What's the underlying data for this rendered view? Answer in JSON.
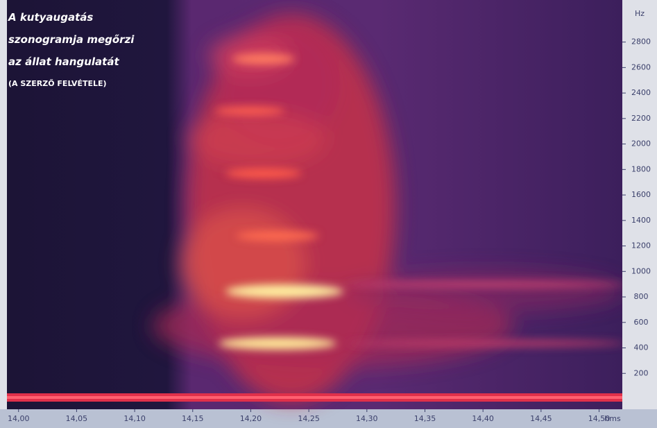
{
  "chart_data": {
    "type": "spectrogram",
    "title_lines": [
      "A kutyaugatás",
      "szonogramja megőrzi",
      "az állat hangulatát"
    ],
    "subtitle": "(A SZERZŐ FELVÉTELE)",
    "y_label": "Hz",
    "x_label": "hms",
    "xlim": [
      13.99,
      14.52
    ],
    "xticks": [
      {
        "value": 14.0,
        "label": "14,00"
      },
      {
        "value": 14.05,
        "label": "14,05"
      },
      {
        "value": 14.1,
        "label": "14,10"
      },
      {
        "value": 14.15,
        "label": "14,15"
      },
      {
        "value": 14.2,
        "label": "14,20"
      },
      {
        "value": 14.25,
        "label": "14,25"
      },
      {
        "value": 14.3,
        "label": "14,30"
      },
      {
        "value": 14.35,
        "label": "14,35"
      },
      {
        "value": 14.4,
        "label": "14,40"
      },
      {
        "value": 14.45,
        "label": "14,45"
      },
      {
        "value": 14.5,
        "label": "14,50"
      }
    ],
    "ylim": [
      0,
      3130
    ],
    "yticks": [
      200,
      400,
      600,
      800,
      1000,
      1200,
      1400,
      1600,
      1800,
      2000,
      2200,
      2400,
      2600,
      2800
    ]
  }
}
